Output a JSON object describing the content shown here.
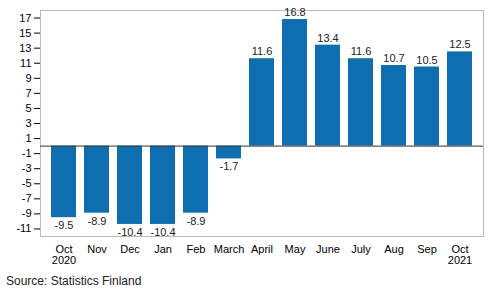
{
  "chart_data": {
    "type": "bar",
    "categories": [
      "Oct\n2020",
      "Nov",
      "Dec",
      "Jan",
      "Feb",
      "March",
      "April",
      "May",
      "June",
      "July",
      "Aug",
      "Sep",
      "Oct\n2021"
    ],
    "values": [
      -9.5,
      -8.9,
      -10.4,
      -10.4,
      -8.9,
      -1.7,
      11.6,
      16.8,
      13.4,
      11.6,
      10.7,
      10.5,
      12.5
    ],
    "color": "#0f6eb0",
    "ylim": [
      -12,
      18
    ],
    "yticks": [
      -11,
      -9,
      -7,
      -5,
      -3,
      -1,
      1,
      3,
      5,
      7,
      9,
      11,
      13,
      15,
      17
    ],
    "grid": false,
    "data_labels": true,
    "caption": "Source: Statistics Finland"
  }
}
